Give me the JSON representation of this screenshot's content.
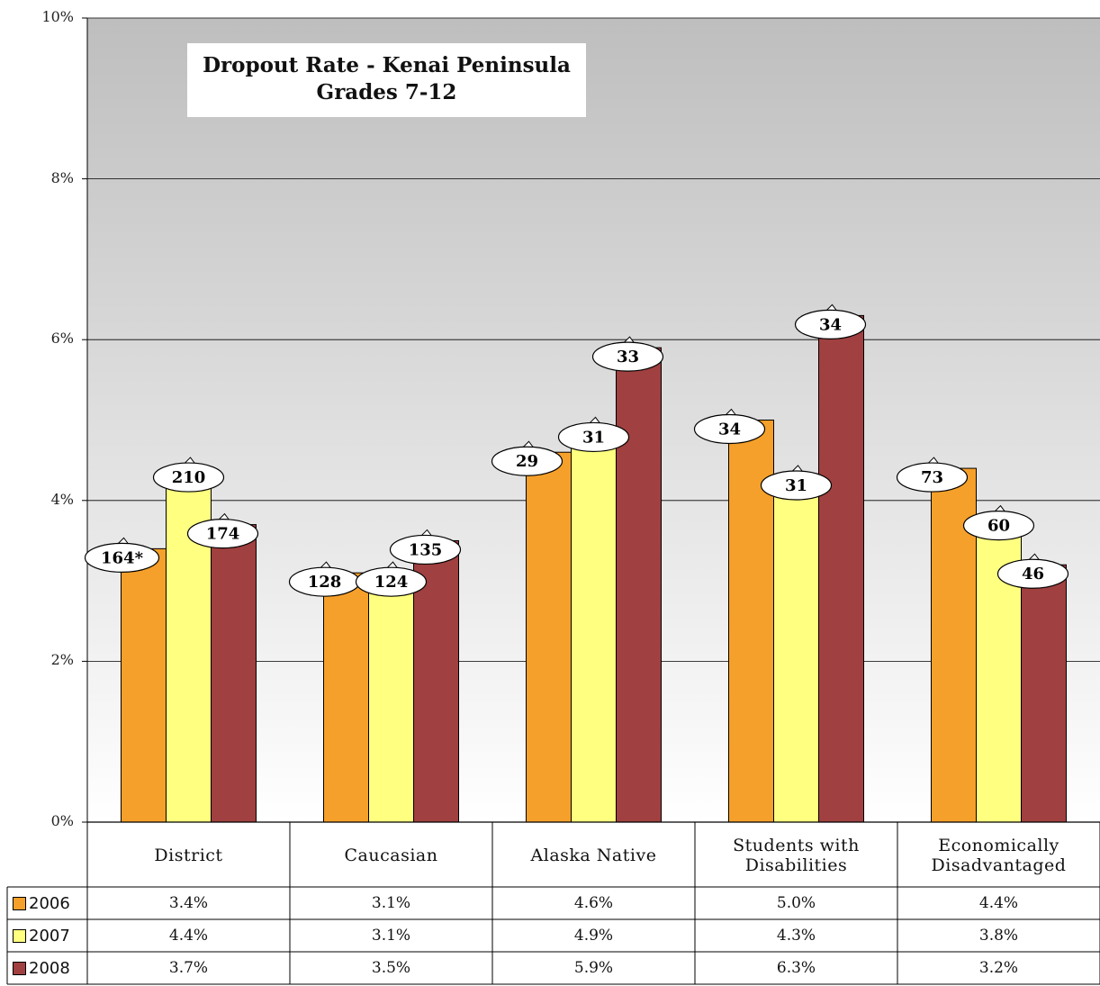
{
  "chart_data": {
    "type": "bar",
    "title": "Dropout Rate - Kenai Peninsula",
    "subtitle": "Grades 7-12",
    "categories": [
      "District",
      "Caucasian",
      "Alaska Native",
      "Students with\nDisabilities",
      "Economically\nDisadvantaged"
    ],
    "series": [
      {
        "name": "2006",
        "values": [
          3.4,
          3.1,
          4.6,
          5.0,
          4.4
        ],
        "labels": [
          "164*",
          "128",
          "29",
          "34",
          "73"
        ],
        "table": [
          "3.4%",
          "3.1%",
          "4.6%",
          "5.0%",
          "4.4%"
        ],
        "color": "#F5A02A"
      },
      {
        "name": "2007",
        "values": [
          4.4,
          3.1,
          4.9,
          4.3,
          3.8
        ],
        "labels": [
          "210",
          "124",
          "31",
          "31",
          "60"
        ],
        "table": [
          "4.4%",
          "3.1%",
          "4.9%",
          "4.3%",
          "3.8%"
        ],
        "color": "#FFFF80"
      },
      {
        "name": "2008",
        "values": [
          3.7,
          3.5,
          5.9,
          6.3,
          3.2
        ],
        "labels": [
          "174",
          "135",
          "33",
          "34",
          "46"
        ],
        "table": [
          "3.7%",
          "3.5%",
          "5.9%",
          "6.3%",
          "3.2%"
        ],
        "color": "#A04040"
      }
    ],
    "ylim": [
      0,
      10
    ],
    "yticks": [
      "0%",
      "2%",
      "4%",
      "6%",
      "8%",
      "10%"
    ],
    "grid": true,
    "legend": "data-table-left",
    "colors": {
      "plot_top": "#BEBEBE",
      "plot_bottom": "#FFFFFF",
      "bar_outline": "#000000"
    }
  }
}
